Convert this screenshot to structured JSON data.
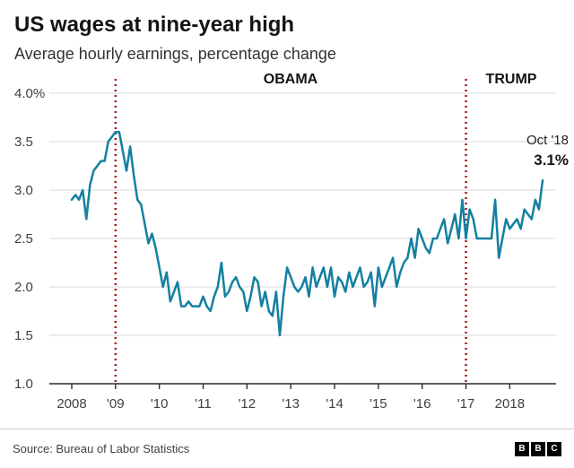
{
  "header": {
    "title": "US wages at nine-year high",
    "subtitle": "Average hourly earnings, percentage change"
  },
  "chart_data": {
    "type": "line",
    "title": "US wages at nine-year high",
    "series_name": "Average hourly earnings, percentage change",
    "x_start": "2008-01",
    "x_end": "2018-10",
    "frequency": "monthly",
    "unit": "%",
    "ylim": [
      1.0,
      4.0
    ],
    "grid": true,
    "line_color": "#1380A1",
    "event_line_color": "#9c1c1c",
    "yticks": [
      {
        "label": "4.0%",
        "value": 4.0
      },
      {
        "label": "3.5",
        "value": 3.5
      },
      {
        "label": "3.0",
        "value": 3.0
      },
      {
        "label": "2.5",
        "value": 2.5
      },
      {
        "label": "2.0",
        "value": 2.0
      },
      {
        "label": "1.5",
        "value": 1.5
      },
      {
        "label": "1.0",
        "value": 1.0
      }
    ],
    "xticks": [
      {
        "label": "2008",
        "month_index": 0
      },
      {
        "label": "'09",
        "month_index": 12
      },
      {
        "label": "'10",
        "month_index": 24
      },
      {
        "label": "'11",
        "month_index": 36
      },
      {
        "label": "'12",
        "month_index": 48
      },
      {
        "label": "'13",
        "month_index": 60
      },
      {
        "label": "'14",
        "month_index": 72
      },
      {
        "label": "'15",
        "month_index": 84
      },
      {
        "label": "'16",
        "month_index": 96
      },
      {
        "label": "'17",
        "month_index": 108
      },
      {
        "label": "2018",
        "month_index": 120
      }
    ],
    "events": [
      {
        "label": "OBAMA",
        "month_index": 12
      },
      {
        "label": "TRUMP",
        "month_index": 108
      }
    ],
    "end_annotation": {
      "date_label": "Oct '18",
      "value_label": "3.1%"
    },
    "values": [
      2.9,
      2.95,
      2.9,
      3.0,
      2.7,
      3.05,
      3.2,
      3.25,
      3.3,
      3.3,
      3.5,
      3.55,
      3.6,
      3.6,
      3.4,
      3.2,
      3.45,
      3.15,
      2.9,
      2.85,
      2.65,
      2.45,
      2.55,
      2.4,
      2.2,
      2.0,
      2.15,
      1.85,
      1.95,
      2.05,
      1.8,
      1.8,
      1.85,
      1.8,
      1.8,
      1.8,
      1.9,
      1.8,
      1.75,
      1.9,
      2.0,
      2.25,
      1.9,
      1.95,
      2.05,
      2.1,
      2.0,
      1.95,
      1.75,
      1.9,
      2.1,
      2.05,
      1.8,
      1.95,
      1.75,
      1.7,
      1.95,
      1.5,
      1.9,
      2.2,
      2.1,
      2.0,
      1.95,
      2.0,
      2.1,
      1.9,
      2.2,
      2.0,
      2.1,
      2.2,
      2.0,
      2.2,
      1.9,
      2.1,
      2.05,
      1.95,
      2.15,
      2.0,
      2.1,
      2.2,
      2.0,
      2.05,
      2.15,
      1.8,
      2.2,
      2.0,
      2.1,
      2.2,
      2.3,
      2.0,
      2.15,
      2.25,
      2.3,
      2.5,
      2.3,
      2.6,
      2.5,
      2.4,
      2.35,
      2.5,
      2.5,
      2.6,
      2.7,
      2.45,
      2.6,
      2.75,
      2.5,
      2.9,
      2.5,
      2.8,
      2.7,
      2.5,
      2.5,
      2.5,
      2.5,
      2.5,
      2.9,
      2.3,
      2.5,
      2.7,
      2.6,
      2.65,
      2.7,
      2.6,
      2.8,
      2.75,
      2.7,
      2.9,
      2.8,
      3.1
    ]
  },
  "footer": {
    "source": "Source: Bureau of Labor Statistics",
    "logo": [
      "B",
      "B",
      "C"
    ]
  }
}
